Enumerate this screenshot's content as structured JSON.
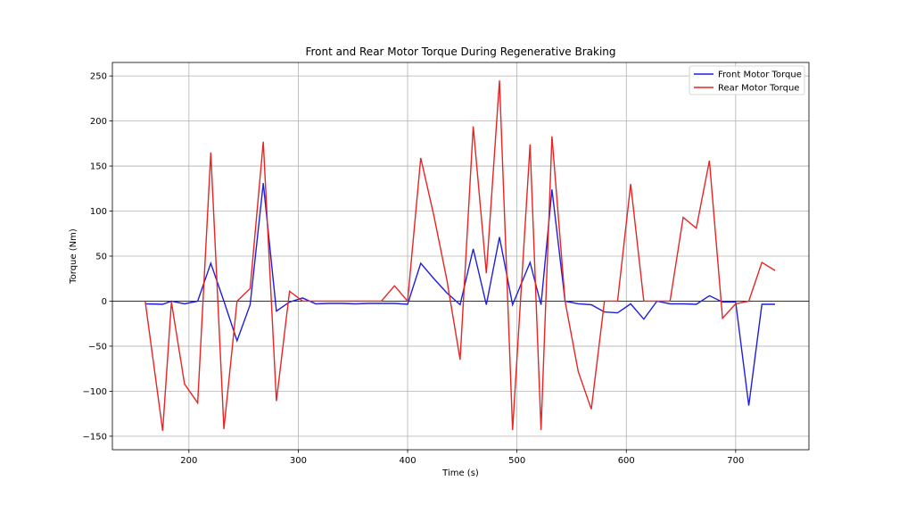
{
  "chart_data": {
    "type": "line",
    "title": "Front and Rear Motor Torque During Regenerative Braking",
    "xlabel": "Time (s)",
    "ylabel": "Torque (Nm)",
    "xlim": [
      130,
      767
    ],
    "ylim": [
      -165,
      265
    ],
    "xticks": [
      200,
      300,
      400,
      500,
      600,
      700
    ],
    "yticks": [
      -150,
      -100,
      -50,
      0,
      50,
      100,
      150,
      200,
      250
    ],
    "grid": true,
    "zero_line": true,
    "legend_position": "top-right",
    "series": [
      {
        "name": "Front Motor Torque",
        "color": "#1f1fdc",
        "x": [
          160,
          176,
          184,
          196,
          208,
          220,
          232,
          244,
          256,
          268,
          280,
          292,
          304,
          316,
          328,
          340,
          352,
          364,
          376,
          388,
          400,
          412,
          424,
          436,
          448,
          460,
          472,
          484,
          496,
          512,
          522,
          532,
          544,
          556,
          568,
          580,
          592,
          604,
          616,
          628,
          640,
          652,
          664,
          676,
          688,
          700,
          712,
          724,
          736
        ],
        "y": [
          -3,
          -3.5,
          0,
          -3,
          0,
          42,
          0,
          -44,
          -4,
          131,
          -11,
          -1,
          3.5,
          -3,
          -2.5,
          -2.5,
          -3,
          -2.5,
          -2.5,
          -2.5,
          -3.5,
          42,
          25,
          9,
          -4,
          58,
          -4,
          71,
          -4,
          43,
          -4,
          124,
          0,
          -3,
          -4,
          -12,
          -13,
          -3,
          -20,
          0,
          -3,
          -3,
          -3.5,
          6,
          -1,
          -1,
          -116,
          -3.5,
          -3.5
        ]
      },
      {
        "name": "Rear Motor Torque",
        "color": "#e82424",
        "x": [
          160,
          176,
          184,
          196,
          208,
          220,
          232,
          244,
          256,
          268,
          280,
          292,
          304,
          316,
          328,
          340,
          352,
          364,
          376,
          388,
          400,
          412,
          424,
          436,
          448,
          460,
          472,
          484,
          496,
          512,
          522,
          532,
          544,
          556,
          568,
          580,
          592,
          604,
          616,
          628,
          640,
          652,
          664,
          676,
          688,
          700,
          712,
          724,
          736
        ],
        "y": [
          0,
          -144,
          -1,
          -92,
          -113,
          165,
          -142,
          0,
          14,
          177,
          -111,
          11,
          0,
          0,
          0,
          0,
          0,
          0,
          0,
          17,
          0,
          159,
          95,
          23,
          -65,
          194,
          31,
          245,
          -143,
          174,
          -143,
          183,
          0,
          -78,
          -120,
          0,
          0,
          130,
          0,
          0,
          0,
          93,
          81,
          156,
          -19,
          -3,
          0,
          43,
          34
        ]
      }
    ]
  }
}
